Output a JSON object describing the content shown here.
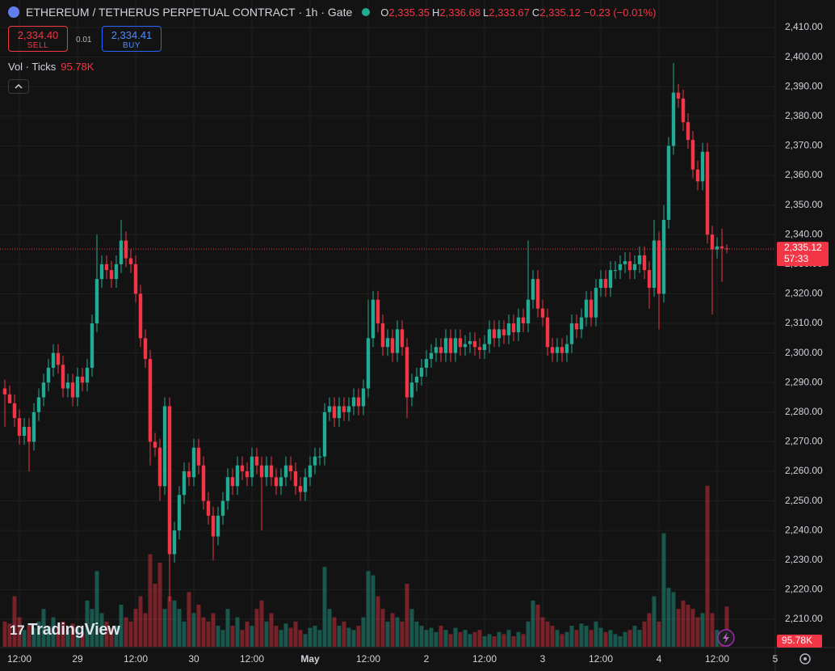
{
  "chart_data": {
    "type": "candlestick",
    "title": "ETHEREUM / TETHERUS PERPETUAL CONTRACT · 1h · Gate",
    "ohlc_legend": [
      {
        "key": "O",
        "value": "2,335.35"
      },
      {
        "key": "H",
        "value": "2,336.68"
      },
      {
        "key": "L",
        "value": "2,333.67"
      },
      {
        "key": "C",
        "value": "2,335.12"
      }
    ],
    "change": "−0.23 (−0.01%)",
    "sell": {
      "price": "2,334.40",
      "label": "SELL"
    },
    "buy": {
      "price": "2,334.41",
      "label": "BUY"
    },
    "spread": "0.01",
    "volume_label": "Vol · Ticks",
    "volume_value": "95.78K",
    "last_price_label": "2,335.12",
    "countdown": "57:33",
    "brand": "TradingView",
    "up_color": "#22ab94",
    "down_color": "#f23645",
    "grid": true,
    "ylim": [
      2200.7,
      2419.3
    ],
    "yticks": [
      {
        "value": 2210,
        "label": "2,210.00"
      },
      {
        "value": 2220,
        "label": "2,220.00"
      },
      {
        "value": 2230,
        "label": "2,230.00"
      },
      {
        "value": 2240,
        "label": "2,240.00"
      },
      {
        "value": 2250,
        "label": "2,250.00"
      },
      {
        "value": 2260,
        "label": "2,260.00"
      },
      {
        "value": 2270,
        "label": "2,270.00"
      },
      {
        "value": 2280,
        "label": "2,280.00"
      },
      {
        "value": 2290,
        "label": "2,290.00"
      },
      {
        "value": 2300,
        "label": "2,300.00"
      },
      {
        "value": 2310,
        "label": "2,310.00"
      },
      {
        "value": 2320,
        "label": "2,320.00"
      },
      {
        "value": 2330,
        "label": "2,330.00"
      },
      {
        "value": 2340,
        "label": "2,340.00"
      },
      {
        "value": 2350,
        "label": "2,350.00"
      },
      {
        "value": 2360,
        "label": "2,360.00"
      },
      {
        "value": 2370,
        "label": "2,370.00"
      },
      {
        "value": 2380,
        "label": "2,380.00"
      },
      {
        "value": 2390,
        "label": "2,390.00"
      },
      {
        "value": 2400,
        "label": "2,400.00"
      },
      {
        "value": 2410,
        "label": "2,410.00"
      }
    ],
    "xlim": [
      -1,
      159
    ],
    "xticks": [
      {
        "value": 3,
        "label": "12:00"
      },
      {
        "value": 15,
        "label": "29"
      },
      {
        "value": 27,
        "label": "12:00"
      },
      {
        "value": 39,
        "label": "30"
      },
      {
        "value": 51,
        "label": "12:00"
      },
      {
        "value": 63,
        "label": "May"
      },
      {
        "value": 75,
        "label": "12:00"
      },
      {
        "value": 87,
        "label": "2"
      },
      {
        "value": 99,
        "label": "12:00"
      },
      {
        "value": 111,
        "label": "3"
      },
      {
        "value": 123,
        "label": "12:00"
      },
      {
        "value": 135,
        "label": "4"
      },
      {
        "value": 147,
        "label": "12:00"
      },
      {
        "value": 159,
        "label": "5"
      }
    ],
    "open": [
      2288,
      2286,
      2283,
      2278,
      2272,
      2275,
      2270,
      2280,
      2285,
      2290,
      2295,
      2300,
      2296,
      2288,
      2290,
      2285,
      2292,
      2290,
      2295,
      2310,
      2325,
      2330,
      2328,
      2325,
      2330,
      2338,
      2332,
      2330,
      2320,
      2305,
      2298,
      2270,
      2268,
      2255,
      2282,
      2232,
      2240,
      2252,
      2260,
      2258,
      2268,
      2262,
      2250,
      2245,
      2238,
      2245,
      2250,
      2258,
      2255,
      2262,
      2260,
      2258,
      2265,
      2262,
      2258,
      2262,
      2258,
      2255,
      2258,
      2262,
      2260,
      2255,
      2253,
      2258,
      2262,
      2265,
      2265,
      2280,
      2282,
      2278,
      2282,
      2280,
      2282,
      2285,
      2282,
      2288,
      2305,
      2318,
      2310,
      2302,
      2305,
      2300,
      2308,
      2302,
      2285,
      2290,
      2292,
      2295,
      2298,
      2300,
      2302,
      2300,
      2305,
      2300,
      2305,
      2302,
      2303,
      2304,
      2302,
      2301,
      2303,
      2308,
      2305,
      2308,
      2306,
      2310,
      2307,
      2312,
      2310,
      2318,
      2325,
      2315,
      2312,
      2302,
      2300,
      2302,
      2300,
      2303,
      2310,
      2308,
      2312,
      2318,
      2312,
      2322,
      2325,
      2322,
      2328,
      2328,
      2330,
      2331,
      2328,
      2330,
      2333,
      2328,
      2322,
      2338,
      2320,
      2345,
      2370,
      2388,
      2386,
      2378,
      2372,
      2362,
      2358,
      2368,
      2340,
      2335,
      2336,
      2335.35
    ],
    "high": [
      2291,
      2289,
      2286,
      2281,
      2278,
      2278,
      2283,
      2288,
      2293,
      2298,
      2303,
      2303,
      2299,
      2293,
      2293,
      2295,
      2295,
      2298,
      2313,
      2340,
      2333,
      2333,
      2331,
      2333,
      2345,
      2341,
      2335,
      2333,
      2323,
      2308,
      2301,
      2273,
      2271,
      2285,
      2285,
      2243,
      2255,
      2263,
      2263,
      2271,
      2271,
      2265,
      2253,
      2248,
      2248,
      2253,
      2261,
      2261,
      2265,
      2265,
      2263,
      2268,
      2268,
      2265,
      2265,
      2265,
      2261,
      2261,
      2265,
      2265,
      2263,
      2258,
      2261,
      2265,
      2268,
      2268,
      2283,
      2285,
      2285,
      2285,
      2285,
      2285,
      2288,
      2288,
      2291,
      2318,
      2321,
      2321,
      2313,
      2308,
      2308,
      2311,
      2311,
      2305,
      2293,
      2295,
      2298,
      2301,
      2303,
      2305,
      2305,
      2308,
      2308,
      2308,
      2308,
      2306,
      2307,
      2307,
      2305,
      2306,
      2311,
      2311,
      2311,
      2311,
      2313,
      2313,
      2315,
      2315,
      2338,
      2328,
      2328,
      2318,
      2315,
      2305,
      2305,
      2305,
      2306,
      2313,
      2313,
      2315,
      2321,
      2321,
      2325,
      2328,
      2328,
      2331,
      2331,
      2333,
      2334,
      2334,
      2333,
      2336,
      2336,
      2331,
      2345,
      2341,
      2350,
      2373,
      2398,
      2391,
      2389,
      2381,
      2375,
      2365,
      2371,
      2371,
      2343,
      2339,
      2342,
      2336.68
    ],
    "low": [
      2275,
      2283,
      2275,
      2269,
      2269,
      2260,
      2267,
      2277,
      2282,
      2287,
      2292,
      2293,
      2285,
      2285,
      2282,
      2282,
      2287,
      2287,
      2292,
      2307,
      2322,
      2325,
      2322,
      2322,
      2327,
      2329,
      2327,
      2317,
      2302,
      2295,
      2262,
      2265,
      2250,
      2252,
      2216,
      2229,
      2237,
      2249,
      2255,
      2255,
      2259,
      2247,
      2242,
      2230,
      2235,
      2242,
      2247,
      2252,
      2252,
      2257,
      2255,
      2255,
      2259,
      2240,
      2255,
      2255,
      2252,
      2252,
      2255,
      2257,
      2252,
      2250,
      2250,
      2255,
      2259,
      2262,
      2262,
      2277,
      2275,
      2275,
      2277,
      2277,
      2279,
      2279,
      2279,
      2285,
      2302,
      2307,
      2299,
      2299,
      2297,
      2297,
      2299,
      2278,
      2282,
      2287,
      2289,
      2292,
      2295,
      2297,
      2297,
      2297,
      2297,
      2297,
      2299,
      2299,
      2300,
      2299,
      2298,
      2298,
      2300,
      2302,
      2302,
      2303,
      2303,
      2304,
      2304,
      2307,
      2307,
      2315,
      2312,
      2309,
      2299,
      2297,
      2297,
      2297,
      2297,
      2300,
      2305,
      2305,
      2309,
      2309,
      2309,
      2319,
      2319,
      2319,
      2325,
      2325,
      2327,
      2325,
      2325,
      2327,
      2325,
      2315,
      2319,
      2308,
      2317,
      2342,
      2367,
      2383,
      2375,
      2369,
      2359,
      2355,
      2355,
      2337,
      2313,
      2332,
      2324,
      2333.67
    ],
    "close": [
      2286,
      2283,
      2278,
      2272,
      2275,
      2270,
      2280,
      2285,
      2290,
      2295,
      2300,
      2296,
      2288,
      2290,
      2285,
      2292,
      2290,
      2295,
      2310,
      2325,
      2330,
      2328,
      2325,
      2330,
      2338,
      2332,
      2330,
      2320,
      2305,
      2298,
      2270,
      2268,
      2255,
      2282,
      2232,
      2240,
      2252,
      2260,
      2258,
      2268,
      2262,
      2250,
      2245,
      2238,
      2245,
      2250,
      2258,
      2255,
      2262,
      2260,
      2258,
      2265,
      2262,
      2258,
      2262,
      2258,
      2255,
      2258,
      2262,
      2260,
      2255,
      2253,
      2258,
      2262,
      2265,
      2265,
      2280,
      2282,
      2278,
      2282,
      2280,
      2282,
      2285,
      2282,
      2288,
      2305,
      2318,
      2310,
      2302,
      2305,
      2300,
      2308,
      2302,
      2285,
      2290,
      2292,
      2295,
      2298,
      2300,
      2302,
      2300,
      2305,
      2300,
      2305,
      2302,
      2303,
      2304,
      2302,
      2301,
      2303,
      2308,
      2305,
      2308,
      2306,
      2310,
      2307,
      2312,
      2310,
      2318,
      2325,
      2315,
      2312,
      2302,
      2300,
      2302,
      2300,
      2303,
      2310,
      2308,
      2312,
      2318,
      2312,
      2322,
      2325,
      2322,
      2328,
      2328,
      2330,
      2331,
      2328,
      2330,
      2333,
      2328,
      2322,
      2338,
      2320,
      2345,
      2370,
      2388,
      2386,
      2378,
      2372,
      2362,
      2358,
      2368,
      2340,
      2335,
      2336,
      2335.35,
      2335.12
    ],
    "volume": [
      60,
      55,
      120,
      70,
      40,
      50,
      45,
      60,
      90,
      50,
      70,
      45,
      60,
      40,
      55,
      45,
      35,
      110,
      90,
      180,
      80,
      60,
      45,
      50,
      100,
      70,
      60,
      90,
      120,
      80,
      220,
      150,
      200,
      90,
      120,
      110,
      90,
      60,
      130,
      80,
      100,
      70,
      60,
      80,
      50,
      40,
      90,
      50,
      70,
      40,
      60,
      50,
      90,
      110,
      60,
      80,
      50,
      40,
      55,
      45,
      60,
      40,
      30,
      45,
      50,
      40,
      190,
      90,
      70,
      50,
      60,
      45,
      40,
      50,
      70,
      180,
      170,
      120,
      90,
      60,
      80,
      70,
      60,
      150,
      90,
      60,
      50,
      40,
      45,
      35,
      50,
      40,
      30,
      45,
      35,
      40,
      30,
      35,
      40,
      25,
      30,
      25,
      35,
      30,
      40,
      25,
      35,
      30,
      60,
      110,
      100,
      70,
      60,
      50,
      40,
      30,
      35,
      50,
      40,
      55,
      50,
      40,
      60,
      45,
      35,
      40,
      30,
      25,
      35,
      40,
      50,
      40,
      60,
      80,
      120,
      60,
      270,
      140,
      130,
      90,
      110,
      100,
      90,
      70,
      80,
      383,
      80,
      40,
      30,
      95.78
    ]
  }
}
